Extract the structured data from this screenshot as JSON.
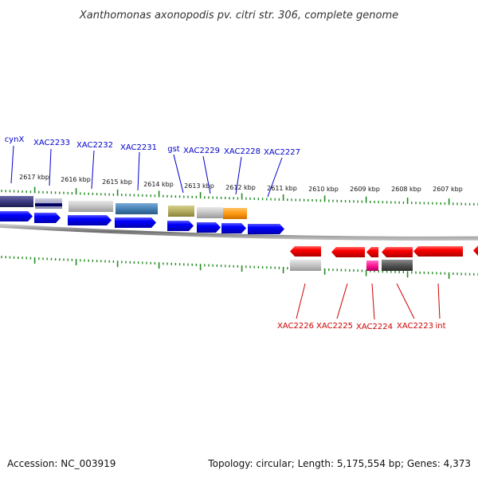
{
  "header": {
    "title": "Xanthomonas axonopodis pv. citri str. 306, complete genome"
  },
  "footer": {
    "accession": "Accession: NC_003919",
    "summary": "Topology: circular; Length: 5,175,554 bp; Genes: 4,373"
  },
  "colors": {
    "tick": "#228b22",
    "forward_label": "#0000cc",
    "reverse_label": "#cc0000",
    "backbone": "#777777"
  },
  "chart_data": {
    "type": "genome-map",
    "title": "Xanthomonas axonopodis pv. citri str. 306, complete genome",
    "scale_labels": [
      "2617 kbp",
      "2616 kbp",
      "2615 kbp",
      "2614 kbp",
      "2613 kbp",
      "2612 kbp",
      "2611 kbp",
      "2610 kbp",
      "2609 kbp",
      "2608 kbp",
      "2607 kbp"
    ],
    "forward_gene_labels": [
      "cynX",
      "XAC2233",
      "XAC2232",
      "XAC2231",
      "gst",
      "XAC2229",
      "XAC2228",
      "XAC2227"
    ],
    "reverse_gene_labels": [
      "XAC2226",
      "XAC2225",
      "XAC2224",
      "XAC2223",
      "int"
    ]
  }
}
